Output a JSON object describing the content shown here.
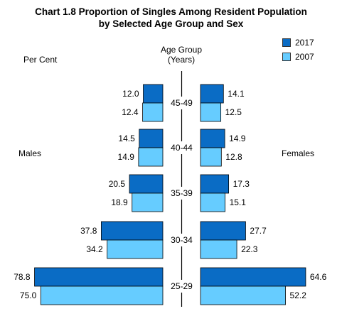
{
  "chart_data": {
    "type": "bar",
    "title": "Chart 1.8  Proportion of Singles Among Resident Population",
    "subtitle": "by Selected Age Group and Sex",
    "y_unit_label": "Per Cent",
    "category_axis_label_line1": "Age Group",
    "category_axis_label_line2": "(Years)",
    "left_side_label": "Males",
    "right_side_label": "Females",
    "categories": [
      "45-49",
      "40-44",
      "35-39",
      "30-34",
      "25-29"
    ],
    "series": [
      {
        "name": "2017",
        "color": "#0a6cc5",
        "males": [
          12.0,
          14.5,
          20.5,
          37.8,
          78.8
        ],
        "females": [
          14.1,
          14.9,
          17.3,
          27.7,
          64.6
        ]
      },
      {
        "name": "2007",
        "color": "#66ccff",
        "males": [
          12.4,
          14.9,
          18.9,
          34.2,
          75.0
        ],
        "females": [
          12.5,
          12.8,
          15.1,
          22.3,
          52.2
        ]
      }
    ],
    "legend_position": "top-right",
    "grid": false
  }
}
